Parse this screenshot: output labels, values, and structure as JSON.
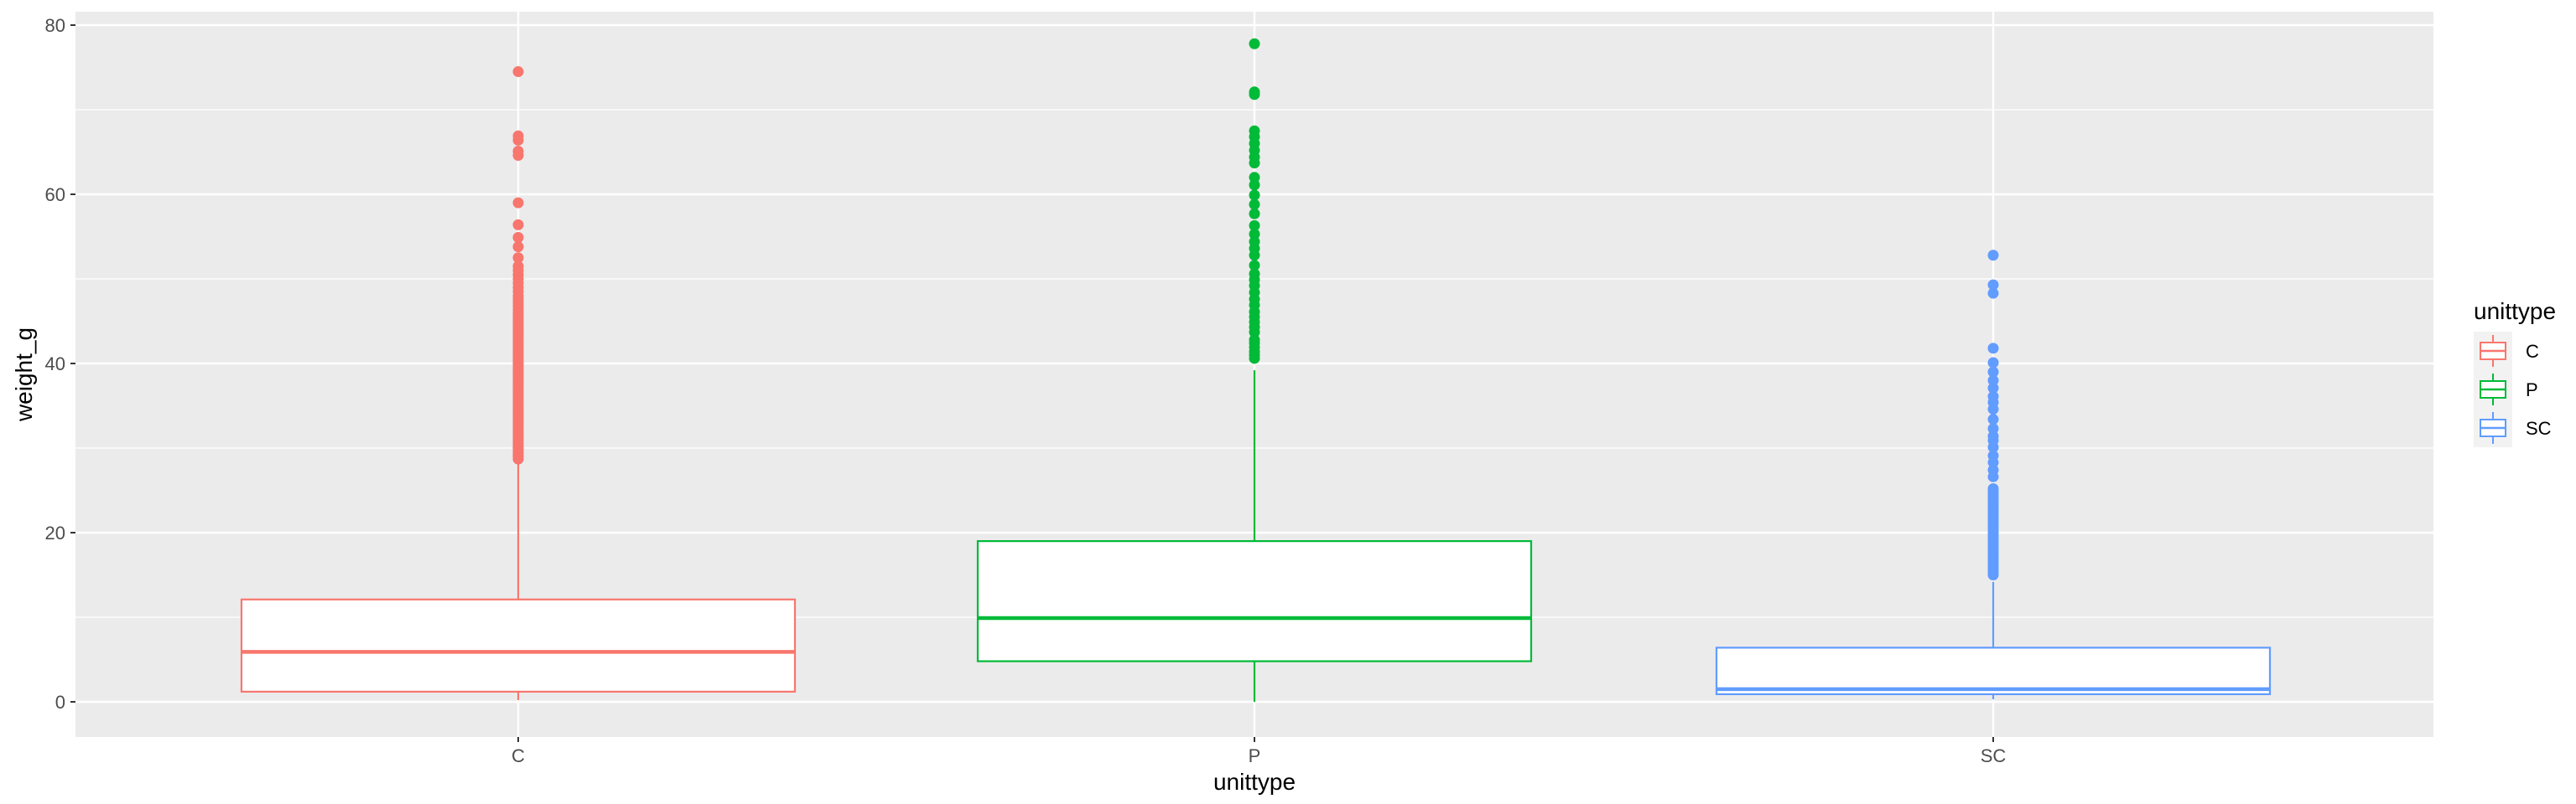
{
  "chart_data": {
    "type": "boxplot",
    "xlabel": "unittype",
    "ylabel": "weight_g",
    "ylim": [
      0,
      80.5
    ],
    "yticks": [
      0,
      20,
      40,
      60,
      80
    ],
    "grid": true,
    "legend": {
      "title": "unittype",
      "position": "right"
    },
    "categories": [
      "C",
      "P",
      "SC"
    ],
    "colors": {
      "C": "#F8766D",
      "P": "#00BA38",
      "SC": "#619CFF"
    },
    "series": [
      {
        "name": "C",
        "whisker_low": 0.2,
        "q1": 1.2,
        "median": 5.9,
        "q3": 12.1,
        "whisker_high": 28.5,
        "outliers": [
          28.7,
          29.0,
          29.2,
          29.5,
          29.8,
          30.1,
          30.4,
          30.7,
          31.0,
          31.3,
          31.6,
          31.9,
          32.2,
          32.5,
          32.8,
          33.1,
          33.4,
          33.7,
          34.0,
          34.3,
          34.6,
          34.9,
          35.2,
          35.5,
          35.8,
          36.1,
          36.4,
          36.7,
          37.0,
          37.3,
          37.6,
          37.9,
          38.2,
          38.5,
          38.8,
          39.1,
          39.4,
          39.7,
          40.0,
          40.3,
          40.6,
          40.9,
          41.2,
          41.5,
          41.8,
          42.1,
          42.4,
          42.7,
          43.0,
          43.3,
          43.6,
          43.9,
          44.2,
          44.5,
          44.8,
          45.1,
          45.4,
          45.7,
          46.0,
          46.4,
          46.8,
          47.2,
          47.6,
          48.0,
          48.5,
          49.0,
          49.5,
          50.0,
          50.5,
          51.0,
          51.5,
          52.5,
          53.8,
          54.9,
          56.4,
          59.0,
          64.6,
          65.1,
          66.4,
          66.9,
          74.5
        ]
      },
      {
        "name": "P",
        "whisker_low": 0.0,
        "q1": 4.8,
        "median": 9.9,
        "q3": 19.0,
        "whisker_high": 39.2,
        "outliers": [
          40.6,
          41.0,
          41.4,
          41.9,
          42.4,
          42.8,
          43.7,
          44.3,
          44.9,
          45.5,
          46.1,
          46.9,
          47.6,
          48.4,
          49.2,
          49.9,
          50.6,
          51.6,
          52.8,
          53.6,
          54.4,
          55.3,
          56.3,
          57.7,
          58.8,
          59.9,
          61.1,
          62.0,
          63.7,
          64.4,
          65.2,
          66.0,
          66.8,
          67.5,
          71.8,
          72.1,
          77.8
        ]
      },
      {
        "name": "SC",
        "whisker_low": 0.3,
        "q1": 0.9,
        "median": 1.5,
        "q3": 6.4,
        "whisker_high": 14.2,
        "outliers": [
          15.0,
          15.3,
          15.6,
          15.9,
          16.2,
          16.5,
          16.8,
          17.1,
          17.4,
          17.7,
          18.0,
          18.3,
          18.6,
          18.9,
          19.2,
          19.5,
          19.8,
          20.1,
          20.4,
          20.7,
          21.0,
          21.3,
          21.6,
          21.9,
          22.2,
          22.5,
          22.8,
          23.1,
          23.4,
          23.7,
          24.0,
          24.3,
          24.6,
          24.9,
          25.2,
          26.6,
          27.4,
          28.3,
          29.1,
          30.1,
          30.9,
          31.4,
          32.3,
          33.4,
          34.6,
          35.4,
          36.1,
          37.1,
          38.0,
          39.0,
          40.1,
          41.8,
          48.3,
          49.3,
          52.8
        ]
      }
    ]
  }
}
